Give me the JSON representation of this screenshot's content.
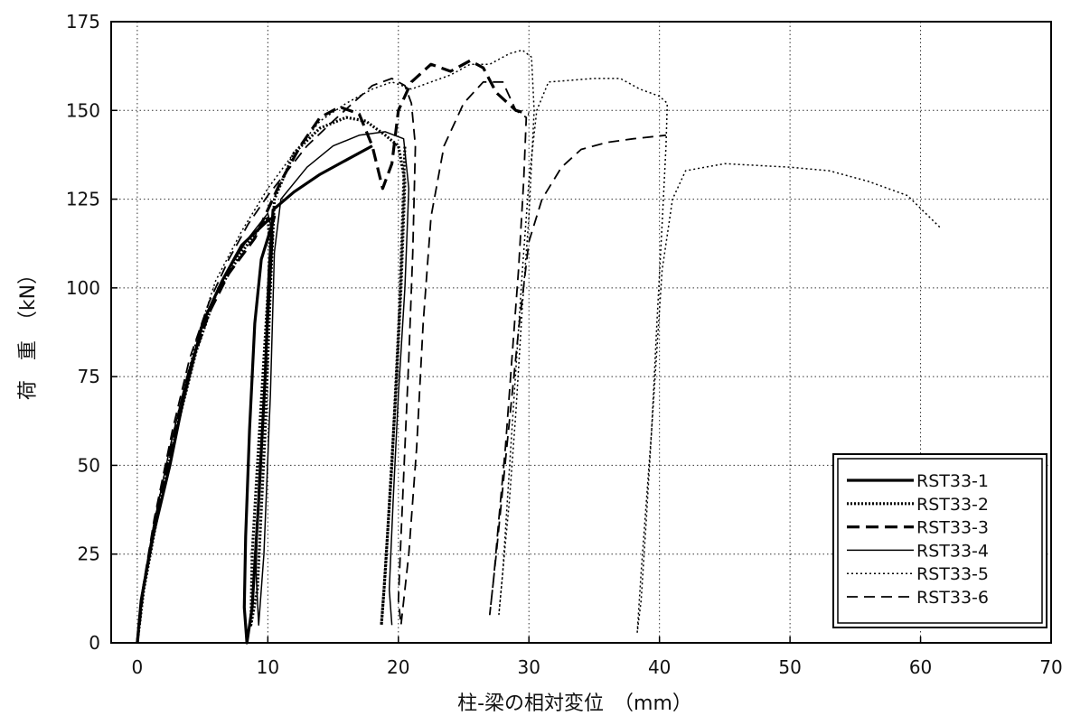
{
  "chart_data": {
    "type": "line",
    "xlabel": "柱-梁の相対変位　（mm）",
    "ylabel": "荷　重　（kN）",
    "xlim": [
      -2,
      70
    ],
    "ylim": [
      0,
      175
    ],
    "xticks": [
      0,
      10,
      20,
      30,
      40,
      50,
      60,
      70
    ],
    "yticks": [
      0,
      25,
      50,
      75,
      100,
      125,
      150,
      175
    ],
    "grid": true,
    "legend_position": "bottom-right",
    "series": [
      {
        "name": "RST33-1",
        "style": "solid-thick",
        "points": [
          [
            0,
            0
          ],
          [
            0.3,
            12
          ],
          [
            1.2,
            30
          ],
          [
            2.5,
            50
          ],
          [
            3.5,
            68
          ],
          [
            5,
            90
          ],
          [
            6.5,
            102
          ],
          [
            8,
            112
          ],
          [
            10,
            119
          ],
          [
            10.5,
            120
          ],
          [
            9.5,
            108
          ],
          [
            9,
            90
          ],
          [
            8.6,
            60
          ],
          [
            8.3,
            30
          ],
          [
            8.2,
            10
          ],
          [
            8.4,
            0
          ],
          [
            8.8,
            10
          ],
          [
            9.3,
            40
          ],
          [
            9.8,
            75
          ],
          [
            10.1,
            105
          ],
          [
            10.4,
            122
          ],
          [
            12,
            127
          ],
          [
            14,
            132
          ],
          [
            16,
            136
          ],
          [
            18,
            140
          ]
        ]
      },
      {
        "name": "RST33-2",
        "style": "dotted-thick",
        "points": [
          [
            0,
            0
          ],
          [
            0.5,
            15
          ],
          [
            1.5,
            35
          ],
          [
            3,
            60
          ],
          [
            4.5,
            82
          ],
          [
            6,
            98
          ],
          [
            8,
            110
          ],
          [
            10,
            120
          ],
          [
            10.2,
            110
          ],
          [
            9.7,
            80
          ],
          [
            9.2,
            50
          ],
          [
            8.8,
            25
          ],
          [
            8.7,
            5
          ],
          [
            9.2,
            15
          ],
          [
            9.8,
            60
          ],
          [
            10.2,
            100
          ],
          [
            10.5,
            125
          ],
          [
            12,
            138
          ],
          [
            14,
            145
          ],
          [
            16,
            148
          ],
          [
            17.5,
            147
          ],
          [
            19,
            143
          ],
          [
            20,
            140
          ],
          [
            20.5,
            130
          ],
          [
            20.2,
            100
          ],
          [
            19.8,
            70
          ],
          [
            19.4,
            45
          ],
          [
            19,
            20
          ],
          [
            18.7,
            5
          ],
          [
            18.9,
            15
          ],
          [
            19.5,
            50
          ],
          [
            20.1,
            95
          ],
          [
            20.5,
            140
          ]
        ]
      },
      {
        "name": "RST33-3",
        "style": "dashed-thick",
        "points": [
          [
            0,
            0
          ],
          [
            0.4,
            14
          ],
          [
            1.3,
            33
          ],
          [
            2.7,
            57
          ],
          [
            4,
            77
          ],
          [
            5.5,
            93
          ],
          [
            7,
            104
          ],
          [
            9,
            114
          ],
          [
            10,
            122
          ],
          [
            11,
            130
          ],
          [
            12.5,
            140
          ],
          [
            14,
            148
          ],
          [
            15.5,
            151
          ],
          [
            17,
            149
          ],
          [
            18,
            140
          ],
          [
            18.8,
            128
          ],
          [
            19.5,
            135
          ],
          [
            20,
            150
          ],
          [
            21,
            158
          ],
          [
            22.5,
            163
          ],
          [
            24,
            161
          ],
          [
            25.5,
            164
          ],
          [
            26.5,
            162
          ],
          [
            27.5,
            155
          ],
          [
            29,
            150
          ],
          [
            30,
            149
          ]
        ]
      },
      {
        "name": "RST33-4",
        "style": "solid-thin",
        "points": [
          [
            0,
            0
          ],
          [
            0.4,
            13
          ],
          [
            1.2,
            32
          ],
          [
            2.5,
            55
          ],
          [
            3.8,
            75
          ],
          [
            5.2,
            92
          ],
          [
            6.8,
            104
          ],
          [
            8.5,
            114
          ],
          [
            10,
            121
          ],
          [
            10.4,
            115
          ],
          [
            10.1,
            95
          ],
          [
            9.7,
            70
          ],
          [
            9.3,
            45
          ],
          [
            9.1,
            20
          ],
          [
            9.3,
            5
          ],
          [
            9.7,
            25
          ],
          [
            10.2,
            70
          ],
          [
            10.5,
            110
          ],
          [
            11,
            125
          ],
          [
            13,
            134
          ],
          [
            15,
            140
          ],
          [
            17,
            143
          ],
          [
            19,
            144
          ],
          [
            20.4,
            142
          ],
          [
            20.8,
            128
          ],
          [
            20.5,
            100
          ],
          [
            20,
            70
          ],
          [
            19.6,
            40
          ],
          [
            19.3,
            15
          ],
          [
            19.5,
            5
          ]
        ]
      },
      {
        "name": "RST33-5",
        "style": "dotted-thin",
        "points": [
          [
            0,
            0
          ],
          [
            0.5,
            16
          ],
          [
            1.5,
            38
          ],
          [
            3,
            63
          ],
          [
            4.5,
            85
          ],
          [
            6,
            102
          ],
          [
            8,
            116
          ],
          [
            10,
            128
          ],
          [
            12,
            138
          ],
          [
            14,
            147
          ],
          [
            16,
            152
          ],
          [
            18,
            156
          ],
          [
            19.5,
            158
          ],
          [
            21,
            156
          ],
          [
            22.5,
            158
          ],
          [
            24,
            160
          ],
          [
            25.5,
            163
          ],
          [
            27,
            163
          ],
          [
            28.5,
            166
          ],
          [
            29.5,
            167
          ],
          [
            30.2,
            165
          ],
          [
            30.4,
            150
          ],
          [
            30,
            120
          ],
          [
            29.5,
            95
          ],
          [
            29,
            65
          ],
          [
            28.5,
            40
          ],
          [
            28,
            20
          ],
          [
            27.7,
            8
          ],
          [
            28,
            20
          ],
          [
            28.7,
            60
          ],
          [
            29.5,
            105
          ],
          [
            30,
            130
          ],
          [
            30.6,
            150
          ],
          [
            31.5,
            158
          ],
          [
            35,
            159
          ],
          [
            37,
            159
          ],
          [
            38.5,
            156
          ],
          [
            40,
            154
          ],
          [
            40.6,
            152
          ],
          [
            40.5,
            140
          ],
          [
            40.2,
            118
          ],
          [
            39.8,
            90
          ],
          [
            39.4,
            60
          ],
          [
            39,
            35
          ],
          [
            38.6,
            12
          ],
          [
            38.3,
            3
          ],
          [
            38.6,
            20
          ],
          [
            39.4,
            60
          ],
          [
            40.2,
            105
          ],
          [
            41,
            125
          ],
          [
            42,
            133
          ],
          [
            45,
            135
          ],
          [
            50,
            134
          ],
          [
            53,
            133
          ],
          [
            56,
            130
          ],
          [
            59,
            126
          ],
          [
            61.5,
            117
          ]
        ]
      },
      {
        "name": "RST33-6",
        "style": "dashed-thin",
        "points": [
          [
            0,
            0
          ],
          [
            0.4,
            15
          ],
          [
            1.3,
            35
          ],
          [
            2.7,
            60
          ],
          [
            4,
            80
          ],
          [
            5.5,
            96
          ],
          [
            7,
            108
          ],
          [
            8.5,
            118
          ],
          [
            10,
            126
          ],
          [
            11.5,
            133
          ],
          [
            13,
            140
          ],
          [
            15,
            147
          ],
          [
            16.5,
            152
          ],
          [
            18,
            157
          ],
          [
            19.5,
            159
          ],
          [
            20.5,
            157
          ],
          [
            21,
            152
          ],
          [
            21.3,
            140
          ],
          [
            21.1,
            110
          ],
          [
            20.8,
            80
          ],
          [
            20.5,
            55
          ],
          [
            20.2,
            30
          ],
          [
            20,
            12
          ],
          [
            20.2,
            5
          ],
          [
            20.8,
            25
          ],
          [
            21.4,
            55
          ],
          [
            21.9,
            90
          ],
          [
            22.5,
            120
          ],
          [
            23.5,
            140
          ],
          [
            25,
            152
          ],
          [
            26.5,
            158
          ],
          [
            28,
            158
          ],
          [
            29,
            150
          ],
          [
            29.8,
            148
          ],
          [
            29.6,
            130
          ],
          [
            29.2,
            105
          ],
          [
            28.7,
            80
          ],
          [
            28.2,
            55
          ],
          [
            27.7,
            35
          ],
          [
            27.3,
            18
          ],
          [
            27,
            8
          ],
          [
            27.5,
            25
          ],
          [
            28.3,
            55
          ],
          [
            29.2,
            88
          ],
          [
            30,
            113
          ],
          [
            31,
            125
          ],
          [
            32.5,
            134
          ],
          [
            34,
            139
          ],
          [
            36,
            141
          ],
          [
            38,
            142
          ],
          [
            40.5,
            143
          ]
        ]
      }
    ]
  }
}
